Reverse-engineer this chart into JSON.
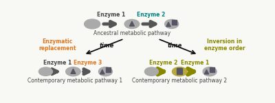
{
  "bg_color": "#f8f8f4",
  "gray_dark": "#444444",
  "teal": "#008080",
  "orange": "#e07820",
  "olive": "#888800",
  "arrow_gray": "#555555",
  "arrow_olive": "#888800",
  "black": "#111111",
  "shape_dark": "#555566",
  "ellipse_gray": "#aaaaaa",
  "ellipse_gray2": "#999999",
  "ellipse_olive": "#b8a840",
  "top_pathway_label": "Ancestral metabolic pathway",
  "bot_left_label": "Contemporary metabolic pathway 1",
  "bot_right_label": "Contemporary metabolic pathway 2",
  "e1_label": "Enzyme 1",
  "e2_label": "Enzyme 2",
  "e3_label": "Enzyme 3",
  "enzymatic_label": "Enzymatic\nreplacement",
  "inversion_label": "Inversion in\nenzyme order",
  "time_label": "time",
  "font_size_pathway": 5.5,
  "font_size_enzyme": 5.5,
  "font_size_annot": 5.5,
  "font_size_time": 6.0
}
